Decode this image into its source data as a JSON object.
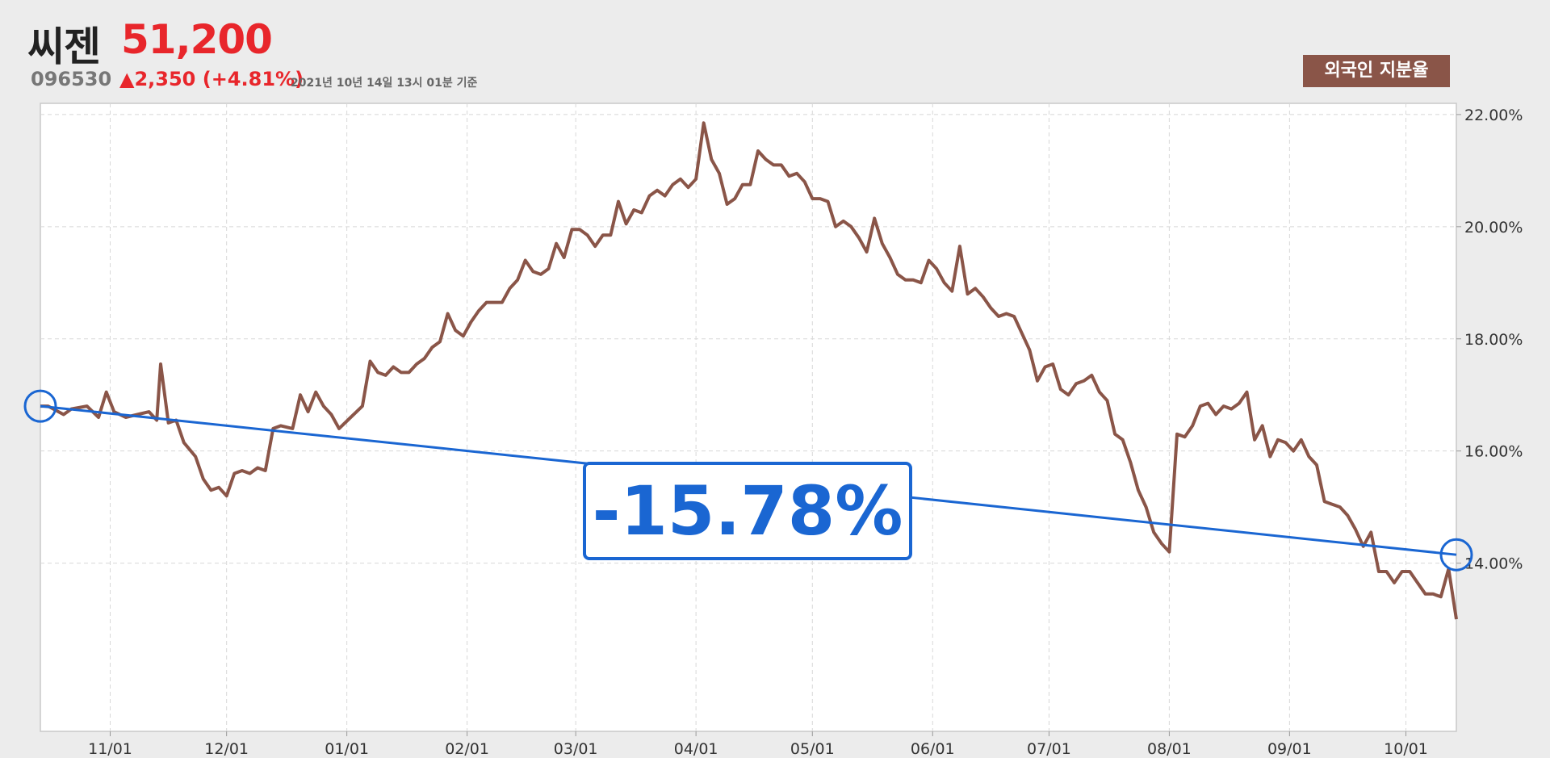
{
  "header": {
    "name": "씨젠",
    "price": "51,200",
    "code": "096530",
    "change": "▲2,350 (+4.81%)",
    "timestamp": "2021년 10년 14일 13시 01분 기준",
    "badge": "외국인 지분율"
  },
  "colors": {
    "line": "#8a5548",
    "trend": "#1a66d2",
    "up": "#e8262b",
    "background": "#ffffff",
    "page": "#ececec"
  },
  "chart_data": {
    "type": "line",
    "title": "외국인 지분율",
    "ylim": [
      11.0,
      22.2
    ],
    "y_ticks": [
      14,
      16,
      18,
      20,
      22
    ],
    "y_tick_labels": [
      "14.00%",
      "16.00%",
      "18.00%",
      "20.00%",
      "22.00%"
    ],
    "x_range": [
      "2020-10-14",
      "2021-10-14"
    ],
    "x_tick_labels": [
      "11/01",
      "12/01",
      "01/01",
      "02/01",
      "03/01",
      "04/01",
      "05/01",
      "06/01",
      "07/01",
      "08/01",
      "09/01",
      "10/01"
    ],
    "x_tick_dates": [
      "2020-11-01",
      "2020-12-01",
      "2021-01-01",
      "2021-02-01",
      "2021-03-01",
      "2021-04-01",
      "2021-05-01",
      "2021-06-01",
      "2021-07-01",
      "2021-08-01",
      "2021-09-01",
      "2021-10-01"
    ],
    "grid": true,
    "series": [
      {
        "name": "외국인 지분율",
        "points": [
          [
            "2020-10-14",
            16.8
          ],
          [
            "2020-10-16",
            16.8
          ],
          [
            "2020-10-20",
            16.65
          ],
          [
            "2020-10-22",
            16.75
          ],
          [
            "2020-10-26",
            16.8
          ],
          [
            "2020-10-29",
            16.6
          ],
          [
            "2020-10-31",
            17.05
          ],
          [
            "2020-11-02",
            16.7
          ],
          [
            "2020-11-05",
            16.6
          ],
          [
            "2020-11-08",
            16.65
          ],
          [
            "2020-11-11",
            16.7
          ],
          [
            "2020-11-13",
            16.55
          ],
          [
            "2020-11-14",
            17.55
          ],
          [
            "2020-11-16",
            16.5
          ],
          [
            "2020-11-18",
            16.55
          ],
          [
            "2020-11-20",
            16.15
          ],
          [
            "2020-11-23",
            15.9
          ],
          [
            "2020-11-25",
            15.5
          ],
          [
            "2020-11-27",
            15.3
          ],
          [
            "2020-11-29",
            15.35
          ],
          [
            "2020-12-01",
            15.2
          ],
          [
            "2020-12-03",
            15.6
          ],
          [
            "2020-12-05",
            15.65
          ],
          [
            "2020-12-07",
            15.6
          ],
          [
            "2020-12-09",
            15.7
          ],
          [
            "2020-12-11",
            15.65
          ],
          [
            "2020-12-13",
            16.4
          ],
          [
            "2020-12-15",
            16.45
          ],
          [
            "2020-12-18",
            16.4
          ],
          [
            "2020-12-20",
            17.0
          ],
          [
            "2020-12-22",
            16.7
          ],
          [
            "2020-12-24",
            17.05
          ],
          [
            "2020-12-26",
            16.8
          ],
          [
            "2020-12-28",
            16.65
          ],
          [
            "2020-12-30",
            16.4
          ],
          [
            "2021-01-02",
            16.6
          ],
          [
            "2021-01-05",
            16.8
          ],
          [
            "2021-01-07",
            17.6
          ],
          [
            "2021-01-09",
            17.4
          ],
          [
            "2021-01-11",
            17.35
          ],
          [
            "2021-01-13",
            17.5
          ],
          [
            "2021-01-15",
            17.4
          ],
          [
            "2021-01-17",
            17.4
          ],
          [
            "2021-01-19",
            17.55
          ],
          [
            "2021-01-21",
            17.65
          ],
          [
            "2021-01-23",
            17.85
          ],
          [
            "2021-01-25",
            17.95
          ],
          [
            "2021-01-27",
            18.45
          ],
          [
            "2021-01-29",
            18.15
          ],
          [
            "2021-01-31",
            18.05
          ],
          [
            "2021-02-02",
            18.3
          ],
          [
            "2021-02-04",
            18.5
          ],
          [
            "2021-02-06",
            18.65
          ],
          [
            "2021-02-08",
            18.65
          ],
          [
            "2021-02-10",
            18.65
          ],
          [
            "2021-02-12",
            18.9
          ],
          [
            "2021-02-14",
            19.05
          ],
          [
            "2021-02-16",
            19.4
          ],
          [
            "2021-02-18",
            19.2
          ],
          [
            "2021-02-20",
            19.15
          ],
          [
            "2021-02-22",
            19.25
          ],
          [
            "2021-02-24",
            19.7
          ],
          [
            "2021-02-26",
            19.45
          ],
          [
            "2021-02-28",
            19.95
          ],
          [
            "2021-03-02",
            19.95
          ],
          [
            "2021-03-04",
            19.85
          ],
          [
            "2021-03-06",
            19.65
          ],
          [
            "2021-03-08",
            19.85
          ],
          [
            "2021-03-10",
            19.85
          ],
          [
            "2021-03-12",
            20.45
          ],
          [
            "2021-03-14",
            20.05
          ],
          [
            "2021-03-16",
            20.3
          ],
          [
            "2021-03-18",
            20.25
          ],
          [
            "2021-03-20",
            20.55
          ],
          [
            "2021-03-22",
            20.65
          ],
          [
            "2021-03-24",
            20.55
          ],
          [
            "2021-03-26",
            20.75
          ],
          [
            "2021-03-28",
            20.85
          ],
          [
            "2021-03-30",
            20.7
          ],
          [
            "2021-04-01",
            20.85
          ],
          [
            "2021-04-03",
            21.85
          ],
          [
            "2021-04-05",
            21.2
          ],
          [
            "2021-04-07",
            20.95
          ],
          [
            "2021-04-09",
            20.4
          ],
          [
            "2021-04-11",
            20.5
          ],
          [
            "2021-04-13",
            20.75
          ],
          [
            "2021-04-15",
            20.75
          ],
          [
            "2021-04-17",
            21.35
          ],
          [
            "2021-04-19",
            21.2
          ],
          [
            "2021-04-21",
            21.1
          ],
          [
            "2021-04-23",
            21.1
          ],
          [
            "2021-04-25",
            20.9
          ],
          [
            "2021-04-27",
            20.95
          ],
          [
            "2021-04-29",
            20.8
          ],
          [
            "2021-05-01",
            20.5
          ],
          [
            "2021-05-03",
            20.5
          ],
          [
            "2021-05-05",
            20.45
          ],
          [
            "2021-05-07",
            20.0
          ],
          [
            "2021-05-09",
            20.1
          ],
          [
            "2021-05-11",
            20.0
          ],
          [
            "2021-05-13",
            19.8
          ],
          [
            "2021-05-15",
            19.55
          ],
          [
            "2021-05-17",
            20.15
          ],
          [
            "2021-05-19",
            19.7
          ],
          [
            "2021-05-21",
            19.45
          ],
          [
            "2021-05-23",
            19.15
          ],
          [
            "2021-05-25",
            19.05
          ],
          [
            "2021-05-27",
            19.05
          ],
          [
            "2021-05-29",
            19.0
          ],
          [
            "2021-05-31",
            19.4
          ],
          [
            "2021-06-02",
            19.25
          ],
          [
            "2021-06-04",
            19.0
          ],
          [
            "2021-06-06",
            18.85
          ],
          [
            "2021-06-08",
            19.65
          ],
          [
            "2021-06-10",
            18.8
          ],
          [
            "2021-06-12",
            18.9
          ],
          [
            "2021-06-14",
            18.75
          ],
          [
            "2021-06-16",
            18.55
          ],
          [
            "2021-06-18",
            18.4
          ],
          [
            "2021-06-20",
            18.45
          ],
          [
            "2021-06-22",
            18.4
          ],
          [
            "2021-06-24",
            18.1
          ],
          [
            "2021-06-26",
            17.8
          ],
          [
            "2021-06-28",
            17.25
          ],
          [
            "2021-06-30",
            17.5
          ],
          [
            "2021-07-02",
            17.55
          ],
          [
            "2021-07-04",
            17.1
          ],
          [
            "2021-07-06",
            17.0
          ],
          [
            "2021-07-08",
            17.2
          ],
          [
            "2021-07-10",
            17.25
          ],
          [
            "2021-07-12",
            17.35
          ],
          [
            "2021-07-14",
            17.05
          ],
          [
            "2021-07-16",
            16.9
          ],
          [
            "2021-07-18",
            16.3
          ],
          [
            "2021-07-20",
            16.2
          ],
          [
            "2021-07-22",
            15.8
          ],
          [
            "2021-07-24",
            15.3
          ],
          [
            "2021-07-26",
            15.0
          ],
          [
            "2021-07-28",
            14.55
          ],
          [
            "2021-07-30",
            14.35
          ],
          [
            "2021-08-01",
            14.2
          ],
          [
            "2021-08-03",
            16.3
          ],
          [
            "2021-08-05",
            16.25
          ],
          [
            "2021-08-07",
            16.45
          ],
          [
            "2021-08-09",
            16.8
          ],
          [
            "2021-08-11",
            16.85
          ],
          [
            "2021-08-13",
            16.65
          ],
          [
            "2021-08-15",
            16.8
          ],
          [
            "2021-08-17",
            16.75
          ],
          [
            "2021-08-19",
            16.85
          ],
          [
            "2021-08-21",
            17.05
          ],
          [
            "2021-08-23",
            16.2
          ],
          [
            "2021-08-25",
            16.45
          ],
          [
            "2021-08-27",
            15.9
          ],
          [
            "2021-08-29",
            16.2
          ],
          [
            "2021-08-31",
            16.15
          ],
          [
            "2021-09-02",
            16.0
          ],
          [
            "2021-09-04",
            16.2
          ],
          [
            "2021-09-06",
            15.9
          ],
          [
            "2021-09-08",
            15.75
          ],
          [
            "2021-09-10",
            15.1
          ],
          [
            "2021-09-12",
            15.05
          ],
          [
            "2021-09-14",
            15.0
          ],
          [
            "2021-09-16",
            14.85
          ],
          [
            "2021-09-18",
            14.6
          ],
          [
            "2021-09-20",
            14.3
          ],
          [
            "2021-09-22",
            14.55
          ],
          [
            "2021-09-24",
            13.85
          ],
          [
            "2021-09-26",
            13.85
          ],
          [
            "2021-09-28",
            13.65
          ],
          [
            "2021-09-30",
            13.85
          ],
          [
            "2021-10-02",
            13.85
          ],
          [
            "2021-10-04",
            13.65
          ],
          [
            "2021-10-06",
            13.45
          ],
          [
            "2021-10-08",
            13.45
          ],
          [
            "2021-10-10",
            13.4
          ],
          [
            "2021-10-12",
            13.9
          ],
          [
            "2021-10-14",
            13.0
          ]
        ]
      }
    ],
    "trend": {
      "start": [
        "2020-10-14",
        16.8
      ],
      "end": [
        "2021-10-14",
        14.15
      ],
      "label": "-15.78%"
    }
  }
}
